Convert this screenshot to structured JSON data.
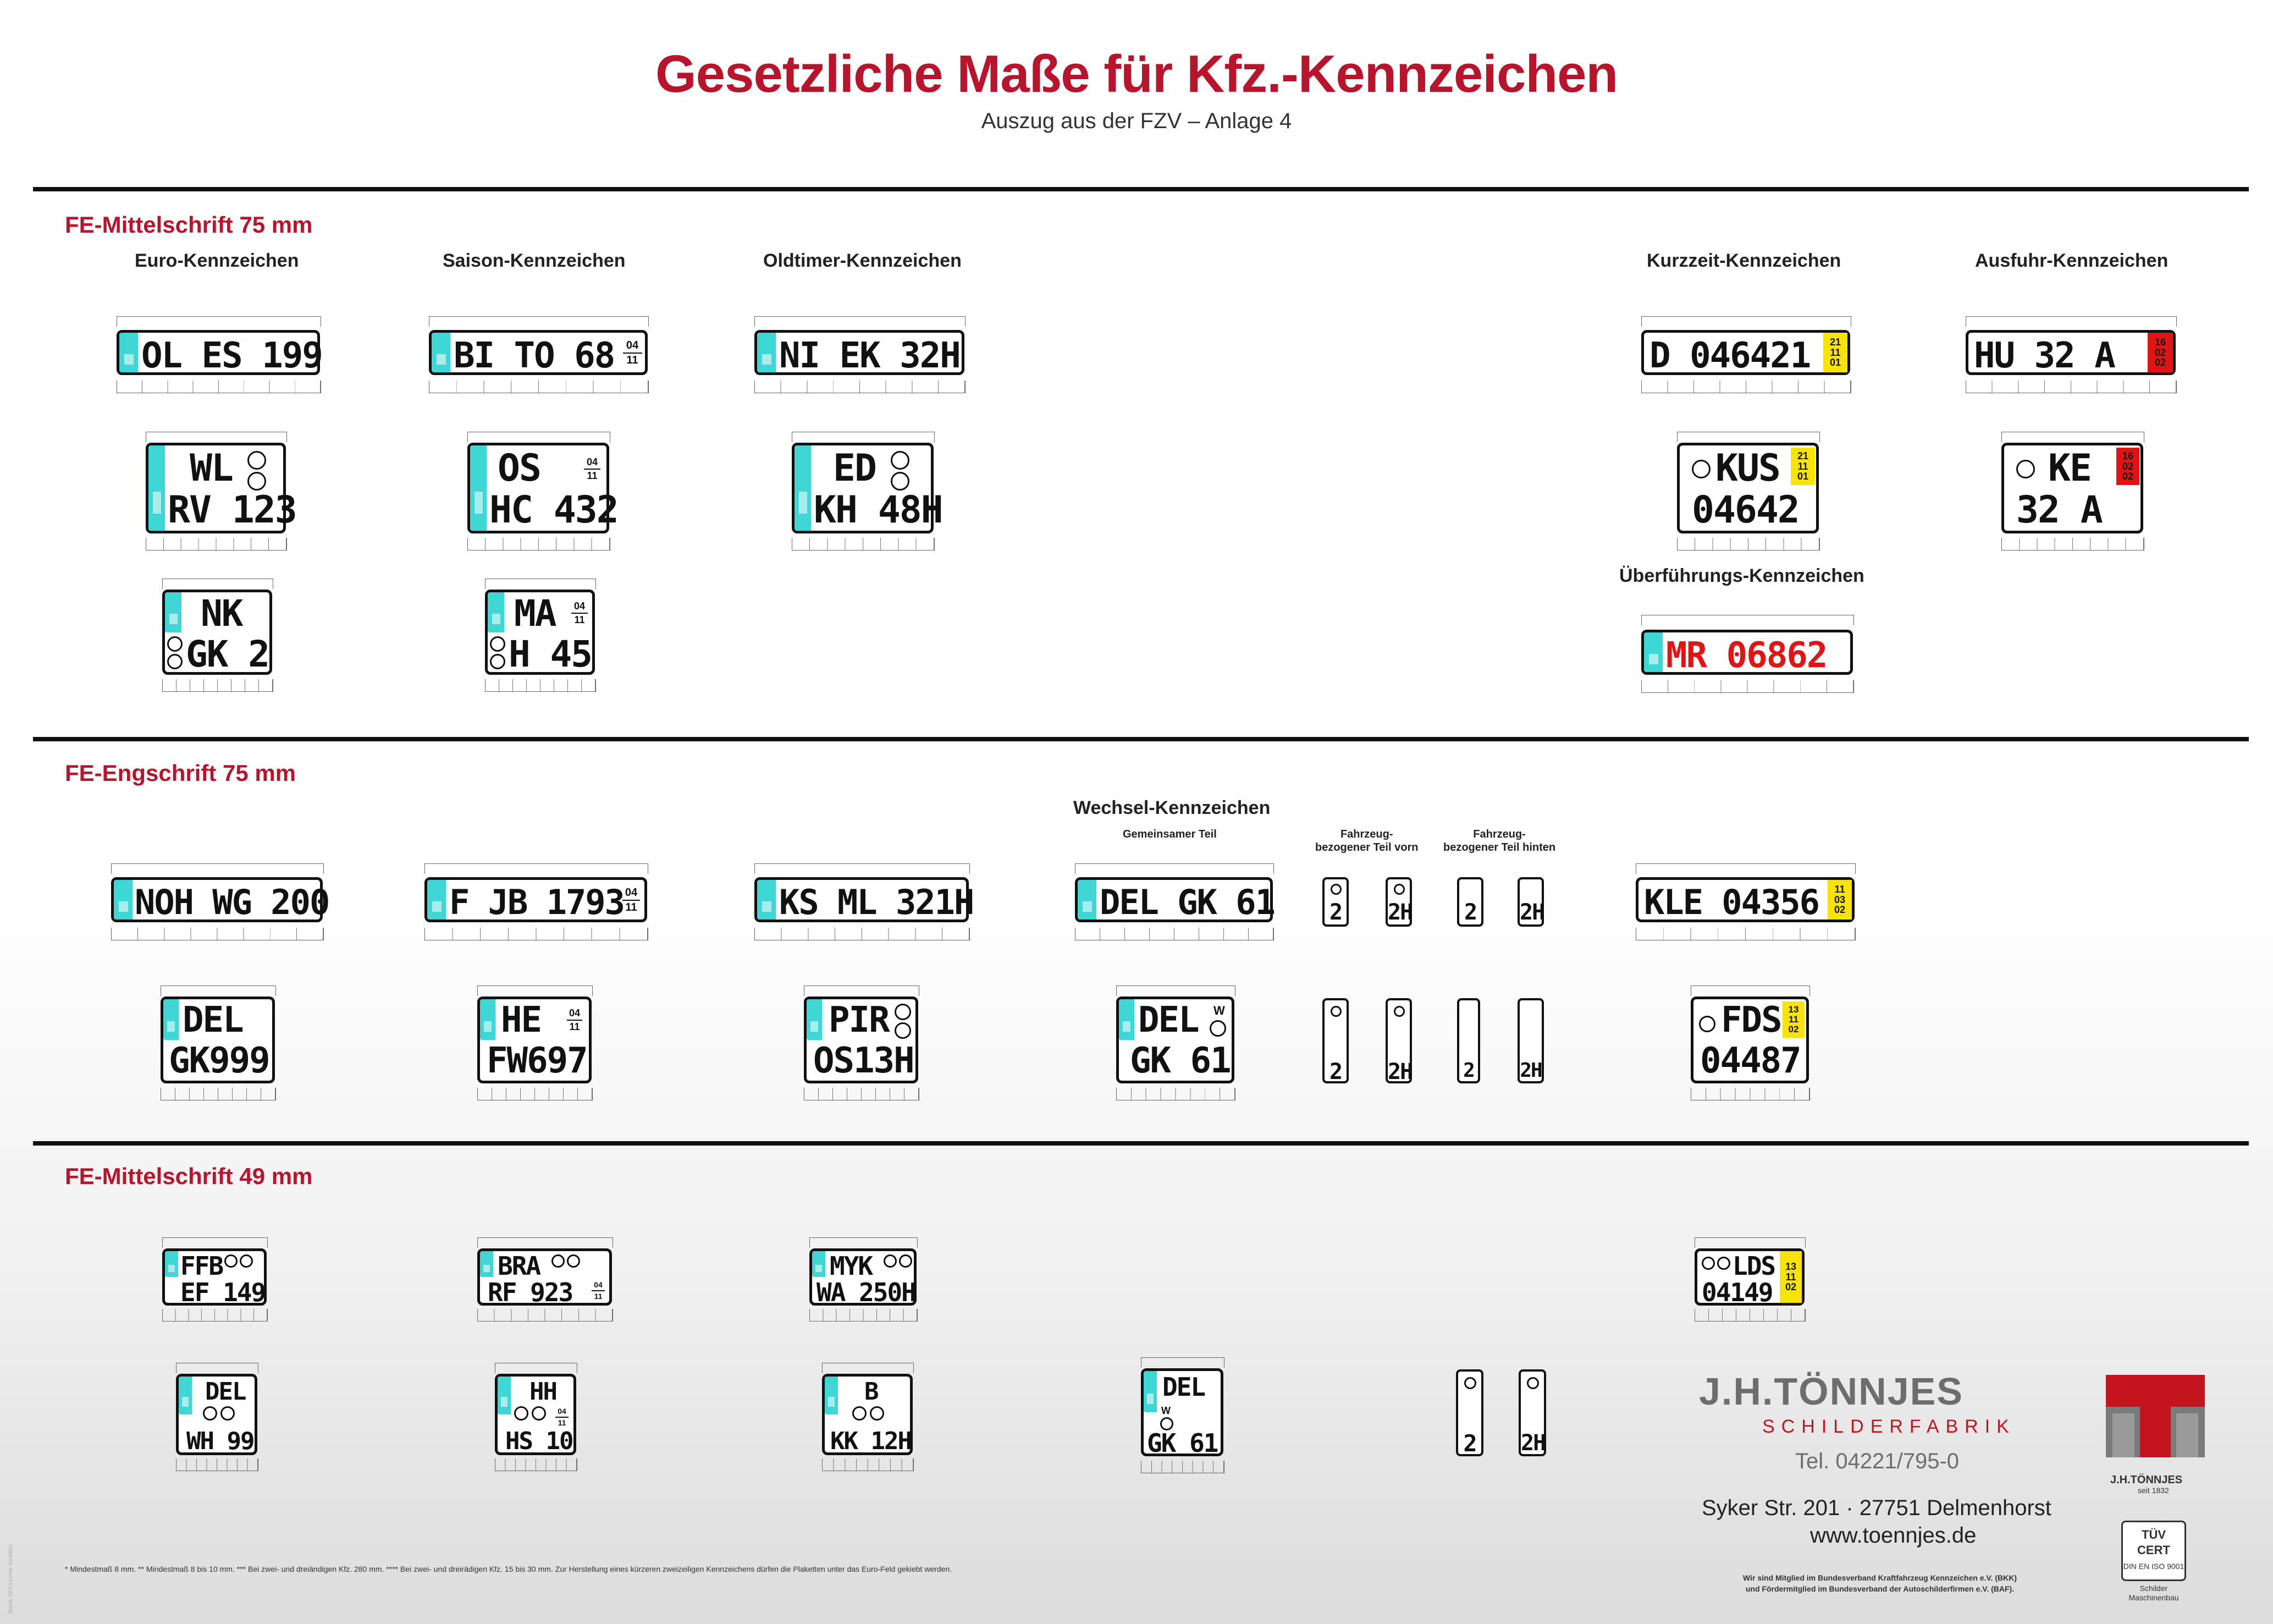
{
  "header": {
    "title": "Gesetzliche Maße für Kfz.-Kennzeichen",
    "subtitle": "Auszug aus der FZV – Anlage 4"
  },
  "sections": [
    {
      "title": "FE-Mittelschrift 75 mm"
    },
    {
      "title": "FE-Engschrift 75 mm"
    },
    {
      "title": "FE-Mittelschrift 49 mm"
    }
  ],
  "groups": {
    "euro": "Euro-Kennzeichen",
    "saison": "Saison-Kennzeichen",
    "oldtimer": "Oldtimer-Kennzeichen",
    "kurzzeit": "Kurzzeit-Kennzeichen",
    "ausfuhr": "Ausfuhr-Kennzeichen",
    "ueberfuehrung": "Überführungs-Kennzeichen",
    "wechsel": "Wechsel-Kennzeichen",
    "wechsel_common": "Gemeinsamer Teil",
    "wechsel_front_1": "Fahrzeug-",
    "wechsel_front_2": "bezogener Teil vorn",
    "wechsel_rear_1": "Fahrzeug-",
    "wechsel_rear_2": "bezogener Teil hinten"
  },
  "plates": {
    "s1_euro_1": "OL ES 199",
    "s1_euro_2a": "WL",
    "s1_euro_2b": "RV 123",
    "s1_euro_3a": "NK",
    "s1_euro_3b": "GK 2",
    "s1_saison_1": "BI TO 68",
    "s1_saison_2a": "OS",
    "s1_saison_2b": "HC 432",
    "s1_saison_3a": "MA",
    "s1_saison_3b": "H 45",
    "s1_old_1": "NI EK 32H",
    "s1_old_2a": "ED",
    "s1_old_2b": "KH 48H",
    "s1_kurz_1": "D 046421",
    "s1_kurz_2a": "KUS",
    "s1_kurz_2b": "04642",
    "s1_ausfuhr_1": "HU 32 A",
    "s1_ausfuhr_2a": "KE",
    "s1_ausfuhr_2b": "32 A",
    "s1_ueber": "MR 06862",
    "s2_1": "NOH WG 200",
    "s2_2": "F JB 1793",
    "s2_3": "KS ML 321H",
    "s2_wechsel_1": "DEL GK 61",
    "s2_wechsel_v1": "2",
    "s2_wechsel_v2": "2H",
    "s2_kurz_1": "KLE 04356",
    "s2_b1a": "DEL",
    "s2_b1b": "GK999",
    "s2_b2a": "HE",
    "s2_b2b": "FW697",
    "s2_b3a": "PIR",
    "s2_b3b": "OS13H",
    "s2_b4a": "DEL",
    "s2_b4b": "GK 61",
    "s2_b5a": "FDS",
    "s2_b5b": "04487",
    "s3_1a": "FFB",
    "s3_1b": "EF 149",
    "s3_2a": "BRA",
    "s3_2b": "RF 923",
    "s3_3a": "MYK",
    "s3_3b": "WA 250H",
    "s3_4a": "LDS",
    "s3_4b": "04149",
    "s3_b1a": "DEL",
    "s3_b1b": "WH 99",
    "s3_b2a": "HH",
    "s3_b2b": "HS 10",
    "s3_b3a": "B",
    "s3_b3b": "KK 12H",
    "s3_b4a": "DEL",
    "s3_b4b": "GK 61"
  },
  "season": {
    "from": "04",
    "to": "11"
  },
  "kurzzeit": {
    "d1": "21",
    "m1": "11",
    "y1": "01",
    "d2": "11",
    "m2": "03",
    "y2": "02",
    "d3": "13",
    "m3": "11",
    "y3": "02"
  },
  "kurzzeit_s3": {
    "d": "13",
    "m": "11",
    "y": "02"
  },
  "kurzzeit_s2b": {
    "d": "13",
    "m": "11",
    "y": "02"
  },
  "ausfuhr_box": {
    "d": "16",
    "m": "02",
    "y": "02"
  },
  "footer": {
    "footnote": "* Mindestmaß 8 mm. ** Mindestmaß 8 bis 10 mm. *** Bei zwei- und dreiändigen Kfz. 280 mm. **** Bei zwei- und dreirädigen Kfz. 15 bis 30 mm. Zur Herstellung eines kürzeren zweizeiligen Kennzeichens dürfen die Plaketten unter das Euro-Feld gekiebt werden.",
    "sideprint": "Stand: 02/13 (ohne Gewähr)",
    "company": "J.H.TÖNNJES",
    "company_sub": "SCHILDERFABRIK",
    "tel": "Tel. 04221/795-0",
    "address": "Syker Str. 201 · 27751 Delmenhorst",
    "web": "www.toennjes.de",
    "member_1": "Wir sind Mitglied im Bundesverband Kraftfahrzeug Kennzeichen e.V. (BKK)",
    "member_2": "und Fördermitglied im Bundesverband der Autoschilderfirmen e.V. (BAF).",
    "logo_name": "J.H.TÖNNJES",
    "logo_since": "seit 1832",
    "tuv_top": "TÜV",
    "tuv_mid": "CERT",
    "tuv_std": "DIN EN ISO 9001",
    "tuv_cap_1": "Schilder",
    "tuv_cap_2": "Maschinenbau"
  },
  "colors": {
    "accent": "#b8152d",
    "eu_band": "#3fd6d6",
    "yellow": "#f7e400",
    "export_red": "#e01414"
  }
}
